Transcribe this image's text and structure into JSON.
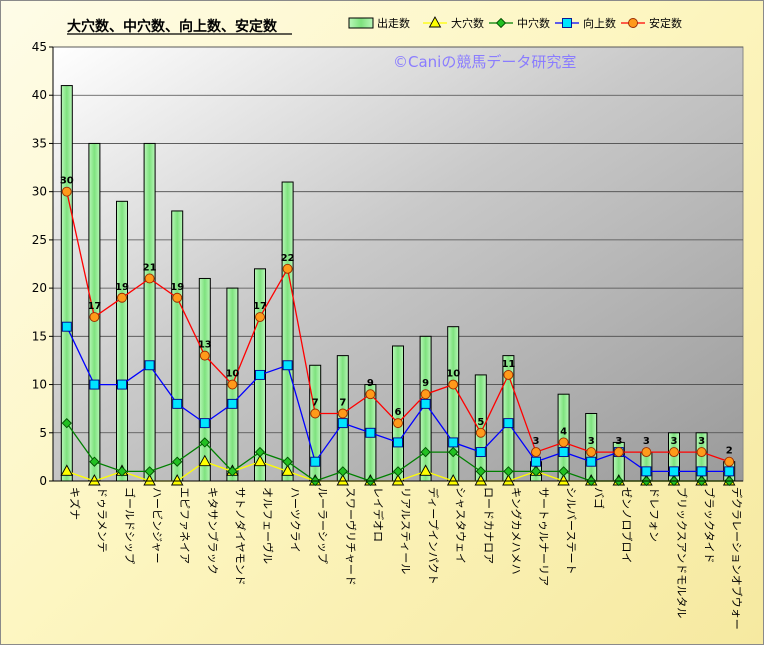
{
  "chart_data": {
    "type": "bar",
    "title": "大穴数、中穴数、向上数、安定数",
    "watermark": "©Caniの競馬データ研究室",
    "ylim": [
      0,
      45
    ],
    "yticks": [
      0,
      5,
      10,
      15,
      20,
      25,
      30,
      35,
      40,
      45
    ],
    "grid": true,
    "legend": "top-right",
    "categories": [
      "キズナ",
      "ドゥラメンテ",
      "ゴールドシップ",
      "ハービンジャー",
      "エピファネイア",
      "キタサンブラック",
      "サトノダイヤモンド",
      "オルフェーヴル",
      "ハーツクライ",
      "ルーラーシップ",
      "スワーヴリチャード",
      "レイデオロ",
      "リアルスティール",
      "ディープインパクト",
      "シャスタウェイ",
      "ロードカナロア",
      "キングカメハメハ",
      "サートゥルナーリア",
      "シルバーステート",
      "バゴ",
      "ゼンノロブロイ",
      "ドレフォン",
      "ブリックスアンドモルタル",
      "ブラックタイド",
      "デクラレーションオブウォー"
    ],
    "series": [
      {
        "name": "出走数",
        "kind": "bar",
        "color": "#7ee27e",
        "values": [
          41,
          35,
          29,
          35,
          28,
          21,
          20,
          22,
          31,
          12,
          13,
          10,
          14,
          15,
          16,
          11,
          13,
          2,
          9,
          7,
          4,
          3,
          5,
          5,
          2
        ]
      },
      {
        "name": "大穴数",
        "kind": "line",
        "color": "#ffff00",
        "marker": "triangle",
        "values": [
          1,
          0,
          1,
          0,
          0,
          2,
          1,
          2,
          1,
          0,
          0,
          0,
          0,
          1,
          0,
          0,
          0,
          1,
          0,
          0,
          0,
          0,
          0,
          0,
          0
        ]
      },
      {
        "name": "中穴数",
        "kind": "line",
        "color": "#008000",
        "marker": "diamond",
        "values": [
          6,
          2,
          1,
          1,
          2,
          4,
          1,
          3,
          2,
          0,
          1,
          0,
          1,
          3,
          3,
          1,
          1,
          1,
          1,
          0,
          0,
          0,
          0,
          0,
          0
        ]
      },
      {
        "name": "向上数",
        "kind": "line",
        "color": "#0000ff",
        "marker": "square",
        "values": [
          16,
          10,
          10,
          12,
          8,
          6,
          8,
          11,
          12,
          2,
          6,
          5,
          4,
          8,
          4,
          3,
          6,
          2,
          3,
          2,
          3,
          1,
          1,
          1,
          1
        ]
      },
      {
        "name": "安定数",
        "kind": "line",
        "color": "#ff0000",
        "marker": "circle",
        "values": [
          30,
          17,
          19,
          21,
          19,
          13,
          10,
          17,
          22,
          7,
          7,
          9,
          6,
          9,
          10,
          5,
          11,
          3,
          4,
          3,
          3,
          3,
          3,
          3,
          2
        ]
      }
    ]
  }
}
